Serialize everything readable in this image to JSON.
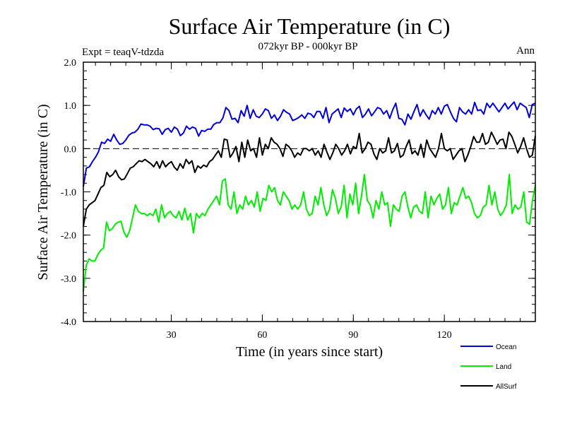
{
  "chart_data": {
    "type": "line",
    "title": "Surface Air Temperature (in C)",
    "subtitle": "072kyr BP - 000kyr BP",
    "left_label": "Expt = teaqV-tdzda",
    "right_label": "Ann",
    "xlabel": "Time (in years since start)",
    "ylabel": "Surface Air Temperature (in C)",
    "xlim": [
      1,
      150
    ],
    "ylim": [
      -4.0,
      2.0
    ],
    "xticks": [
      30,
      60,
      90,
      120
    ],
    "xtick_labels": [
      "30",
      "60",
      "90",
      "120"
    ],
    "yticks": [
      -4.0,
      -3.0,
      -2.0,
      -1.0,
      0.0,
      1.0,
      2.0
    ],
    "ytick_labels": [
      "-4.0",
      "-3.0",
      "-2.0",
      "-1.0",
      "0.0",
      "1.0",
      "2.0"
    ],
    "reference_line": 0.0,
    "series": [
      {
        "name": "Ocean",
        "color": "#0000dd",
        "values": [
          -0.88,
          -0.45,
          -0.42,
          -0.3,
          -0.2,
          -0.07,
          0.15,
          0.12,
          0.22,
          0.17,
          0.33,
          0.2,
          0.1,
          0.12,
          0.2,
          0.31,
          0.36,
          0.38,
          0.45,
          0.57,
          0.55,
          0.55,
          0.52,
          0.44,
          0.47,
          0.46,
          0.33,
          0.44,
          0.47,
          0.38,
          0.5,
          0.45,
          0.3,
          0.36,
          0.52,
          0.45,
          0.5,
          0.47,
          0.29,
          0.42,
          0.4,
          0.45,
          0.45,
          0.56,
          0.6,
          0.6,
          0.71,
          0.95,
          0.88,
          0.68,
          0.7,
          0.6,
          0.88,
          0.75,
          1.0,
          0.7,
          0.9,
          0.75,
          0.72,
          0.8,
          0.92,
          0.88,
          0.7,
          0.78,
          0.65,
          0.75,
          0.9,
          0.84,
          0.8,
          0.65,
          0.68,
          0.72,
          0.78,
          0.7,
          0.82,
          0.8,
          0.72,
          0.86,
          0.86,
          0.7,
          0.95,
          0.6,
          0.8,
          0.86,
          0.92,
          0.72,
          0.94,
          0.86,
          0.92,
          0.78,
          0.92,
          0.98,
          0.72,
          0.8,
          0.92,
          0.76,
          0.85,
          0.95,
          0.92,
          0.8,
          0.88,
          0.7,
          0.9,
          1.05,
          0.7,
          0.68,
          0.55,
          0.8,
          0.68,
          0.86,
          1.02,
          0.75,
          0.9,
          0.78,
          0.68,
          0.88,
          0.8,
          0.95,
          0.8,
          0.98,
          1.02,
          0.85,
          0.7,
          0.62,
          0.95,
          0.85,
          0.8,
          0.9,
          0.8,
          1.07,
          0.88,
          0.9,
          0.8,
          1.05,
          0.95,
          1.05,
          0.95,
          0.85,
          0.95,
          1.05,
          0.92,
          1.0,
          1.08,
          0.9,
          1.05,
          1.0,
          0.95,
          0.72,
          1.02,
          1.05
        ]
      },
      {
        "name": "Land",
        "color": "#00ee00",
        "values": [
          -3.3,
          -2.7,
          -2.55,
          -2.6,
          -2.6,
          -2.45,
          -2.35,
          -2.3,
          -1.7,
          -1.9,
          -1.85,
          -1.75,
          -1.7,
          -1.68,
          -1.93,
          -2.05,
          -1.9,
          -1.6,
          -1.3,
          -1.45,
          -1.5,
          -1.5,
          -1.55,
          -1.5,
          -1.55,
          -1.4,
          -1.7,
          -1.3,
          -1.6,
          -1.5,
          -1.45,
          -1.55,
          -1.6,
          -1.45,
          -1.65,
          -1.38,
          -1.65,
          -1.5,
          -1.95,
          -1.5,
          -1.6,
          -1.5,
          -1.55,
          -1.4,
          -1.3,
          -1.2,
          -1.1,
          -1.3,
          -0.75,
          -0.7,
          -1.3,
          -1.4,
          -1.0,
          -1.5,
          -1.3,
          -1.4,
          -1.1,
          -1.3,
          -1.2,
          -1.35,
          -1.0,
          -1.45,
          -1.15,
          -1.2,
          -0.85,
          -1.0,
          -0.9,
          -1.2,
          -1.3,
          -1.0,
          -1.1,
          -1.2,
          -1.4,
          -1.3,
          -1.4,
          -1.3,
          -1.0,
          -1.4,
          -1.55,
          -1.5,
          -1.1,
          -1.3,
          -0.9,
          -1.3,
          -1.55,
          -1.4,
          -0.95,
          -1.15,
          -1.5,
          -1.35,
          -0.85,
          -1.6,
          -1.05,
          -1.3,
          -0.8,
          -1.5,
          -1.1,
          -0.6,
          -1.2,
          -1.3,
          -1.6,
          -1.2,
          -1.4,
          -1.0,
          -1.3,
          -1.25,
          -1.8,
          -1.3,
          -1.4,
          -1.45,
          -1.1,
          -1.0,
          -1.35,
          -1.6,
          -1.35,
          -1.3,
          -1.45,
          -1.5,
          -1.0,
          -1.6,
          -1.1,
          -1.3,
          -1.15,
          -1.05,
          -1.4,
          -1.3,
          -0.9,
          -1.5,
          -1.25,
          -1.3,
          -1.1,
          -0.9,
          -1.15,
          -1.1,
          -1.25,
          -1.5,
          -1.6,
          -1.55,
          -1.35,
          -1.3,
          -0.85,
          -1.3,
          -1.0,
          -1.4,
          -1.55,
          -1.45,
          -1.3,
          -0.6,
          -1.5,
          -1.3,
          -1.4,
          -1.35,
          -1.0,
          -1.7,
          -1.75,
          -1.2,
          -0.85
        ]
      },
      {
        "name": "AllSurf",
        "color": "#000000",
        "values": [
          -1.8,
          -1.4,
          -1.3,
          -1.25,
          -1.2,
          -1.05,
          -0.9,
          -0.85,
          -0.55,
          -0.65,
          -0.6,
          -0.5,
          -0.65,
          -0.72,
          -0.7,
          -0.58,
          -0.45,
          -0.42,
          -0.35,
          -0.28,
          -0.3,
          -0.25,
          -0.3,
          -0.35,
          -0.42,
          -0.3,
          -0.45,
          -0.28,
          -0.42,
          -0.35,
          -0.3,
          -0.43,
          -0.5,
          -0.35,
          -0.45,
          -0.25,
          -0.35,
          -0.28,
          -0.55,
          -0.4,
          -0.45,
          -0.38,
          -0.42,
          -0.3,
          -0.25,
          -0.15,
          -0.05,
          -0.2,
          0.22,
          0.2,
          -0.2,
          -0.1,
          0.05,
          -0.3,
          0.15,
          -0.2,
          0.2,
          -0.05,
          0.0,
          -0.2,
          0.25,
          -0.15,
          0.1,
          0.0,
          0.25,
          0.15,
          0.1,
          0.0,
          -0.18,
          0.1,
          0.05,
          -0.05,
          -0.2,
          -0.1,
          -0.15,
          0.0,
          0.0,
          -0.05,
          0.0,
          -0.15,
          -0.05,
          -0.2,
          0.1,
          -0.08,
          -0.25,
          -0.1,
          0.1,
          0.0,
          -0.15,
          -0.05,
          0.1,
          -0.12,
          0.05,
          0.0,
          0.35,
          -0.1,
          0.0,
          0.15,
          0.1,
          -0.12,
          -0.25,
          0.0,
          -0.1,
          -0.05,
          0.25,
          -0.1,
          -0.05,
          0.12,
          -0.2,
          -0.15,
          0.05,
          0.2,
          -0.12,
          -0.05,
          -0.15,
          0.1,
          -0.2,
          0.2,
          0.0,
          -0.1,
          -0.2,
          0.0,
          0.35,
          0.0,
          -0.05,
          0.0,
          -0.25,
          -0.15,
          -0.05,
          0.0,
          -0.3,
          -0.15,
          0.05,
          0.28,
          0.15,
          0.15,
          0.35,
          0.1,
          0.15,
          0.38,
          0.25,
          0.1,
          0.2,
          0.22,
          0.0,
          0.38,
          0.28,
          0.1,
          -0.1,
          0.05,
          0.25,
          0.0,
          -0.2,
          -0.15,
          0.3
        ]
      }
    ],
    "legend": [
      "Ocean",
      "Land",
      "AllSurf"
    ],
    "legend_position": "bottom-right"
  }
}
